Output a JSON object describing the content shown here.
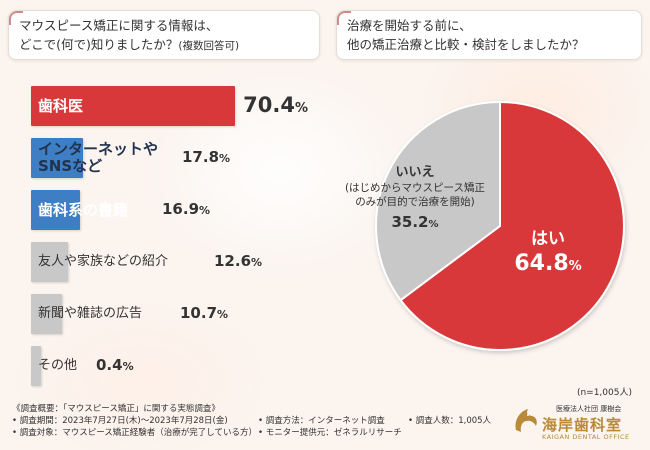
{
  "colors": {
    "red": "#d9383a",
    "blue": "#3e7ec4",
    "gray": "#c8c8c8",
    "text": "#333333",
    "gold": "#b88a3a"
  },
  "left_question": {
    "line1": "マウスピース矯正に関する情報は、",
    "line2": "どこで(何で)知りましたか？",
    "note": "(複数回答可)"
  },
  "right_question": {
    "line1": "治療を開始する前に、",
    "line2": "他の矯正治療と比較・検討をしましたか？"
  },
  "chart_data": [
    {
      "type": "bar",
      "orientation": "horizontal",
      "categories": [
        "歯科医",
        "インターネットやSNSなど",
        "歯科系の書籍",
        "友人や家族などの紹介",
        "新聞や雑誌の広告",
        "その他"
      ],
      "values": [
        70.4,
        17.8,
        16.9,
        12.6,
        10.7,
        0.4
      ],
      "value_labels": [
        "70.4",
        "17.8",
        "16.9",
        "12.6",
        "10.7",
        "0.4"
      ],
      "label_lines": [
        [
          "歯科医"
        ],
        [
          "インターネットや",
          "SNSなど"
        ],
        [
          "歯科系の書籍"
        ],
        [
          "友人や家族などの紹介"
        ],
        [
          "新聞や雑誌の広告"
        ],
        [
          "その他"
        ]
      ],
      "bar_colors": [
        "#d9383a",
        "#3e7ec4",
        "#3e7ec4",
        "#c8c8c8",
        "#c8c8c8",
        "#c8c8c8"
      ],
      "label_colors": [
        "#ffffff",
        "#22334d",
        "#ffffff",
        "#333333",
        "#333333",
        "#333333"
      ],
      "unit": "%",
      "xlim": [
        0,
        100
      ],
      "title": "マウスピース矯正に関する情報は、どこで(何で)知りましたか？(複数回答可)"
    },
    {
      "type": "pie",
      "labels": [
        "はい",
        "いいえ"
      ],
      "values": [
        64.8,
        35.2
      ],
      "value_labels": [
        "64.8",
        "35.2"
      ],
      "colors": [
        "#d9383a",
        "#c8c8c8"
      ],
      "no_sublabel_lines": [
        "(はじめからマウスピース矯正",
        "のみが目的で治療を開始)"
      ],
      "unit": "%",
      "start": "12 o'clock, clockwise",
      "title": "治療を開始する前に、他の矯正治療と比較・検討をしましたか？"
    }
  ],
  "sample_note": "(n=1,005人)",
  "footer": {
    "line1": "《調査概要：「マウスピース矯正」に関する実態調査》",
    "period": "• 調査期間：2023年7月27日(木)～2023年7月28日(金)",
    "target": "• 調査対象：マウスピース矯正経験者（治療が完了している方）",
    "method": "• 調査方法：インターネット調査",
    "monitor": "• モニター提供元：ゼネラルリサーチ",
    "count": "• 調査人数：1,005人"
  },
  "logo": {
    "org": "医療法人社団 康樹会",
    "name": "海岸歯科室",
    "sub": "KAIGAN DENTAL OFFICE"
  }
}
